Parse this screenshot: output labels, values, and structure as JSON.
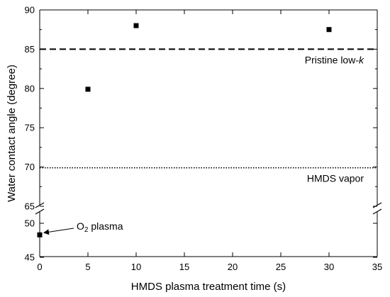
{
  "chart_data": {
    "type": "scatter",
    "xlabel": "HMDS plasma treatment time (s)",
    "ylabel": "Water contact angle (degree)",
    "xlim": [
      0,
      35
    ],
    "x_ticks": [
      0,
      5,
      10,
      15,
      20,
      25,
      30,
      35
    ],
    "axis_break": "between 47.5 and 65",
    "y_ticks_upper": [
      65,
      70,
      75,
      80,
      85,
      90
    ],
    "y_ticks_lower": [
      45,
      50
    ],
    "series": [
      {
        "marker": "square",
        "color": "#000000",
        "points": [
          {
            "x": 0,
            "y": 48.3
          },
          {
            "x": 5,
            "y": 79.9
          },
          {
            "x": 10,
            "y": 88.0
          },
          {
            "x": 30,
            "y": 87.5
          }
        ]
      }
    ],
    "reference_lines": [
      {
        "y": 85.0,
        "style": "dashed",
        "label": "Pristine low-",
        "label_italic": "k"
      },
      {
        "y": 69.9,
        "style": "dotted",
        "label": "HMDS vapor"
      }
    ],
    "annotations": [
      {
        "text": "O",
        "subscript": "2",
        "suffix": " plasma",
        "points_to": {
          "x": 0,
          "y": 48.3
        }
      }
    ]
  }
}
